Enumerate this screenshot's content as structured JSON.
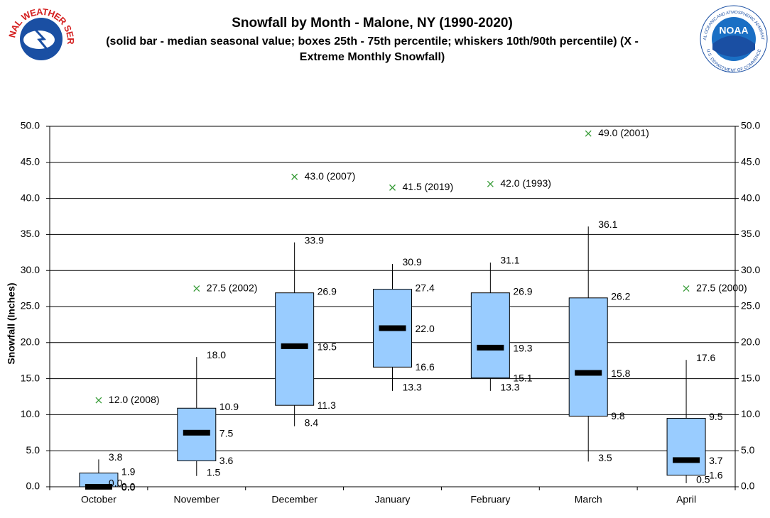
{
  "chart_data": {
    "type": "box",
    "title": "Snowfall by Month - Malone, NY (1990-2020)",
    "subtitle": "(solid bar - median seasonal value; boxes 25th - 75th percentile; whiskers 10th/90th percentile) (X - Extreme Monthly Snowfall)",
    "y_label": "Snowfall (Inches)",
    "categories": [
      "October",
      "November",
      "December",
      "January",
      "February",
      "March",
      "April"
    ],
    "whisker_high": {
      "values": [
        3.8,
        18.0,
        33.9,
        30.9,
        31.1,
        36.1,
        17.6
      ],
      "value_labels": [
        "3.8",
        "18.0",
        "33.9",
        "30.9",
        "31.1",
        "36.1",
        "17.6"
      ]
    },
    "box_high": {
      "values": [
        1.9,
        10.9,
        26.9,
        27.4,
        26.9,
        26.2,
        9.5
      ],
      "value_labels": [
        "1.9",
        "10.9",
        "26.9",
        "27.4",
        "26.9",
        "26.2",
        "9.5"
      ]
    },
    "median": {
      "values": [
        0.0,
        7.5,
        19.5,
        22.0,
        19.3,
        15.8,
        3.7
      ],
      "value_labels": [
        "0.0",
        "7.5",
        "19.5",
        "22.0",
        "19.3",
        "15.8",
        "3.7"
      ]
    },
    "box_low": {
      "values": [
        0.0,
        3.6,
        11.3,
        16.6,
        15.1,
        9.8,
        1.6
      ],
      "value_labels": [
        "0.0",
        "3.6",
        "11.3",
        "16.6",
        "15.1",
        "9.8",
        "1.6"
      ]
    },
    "whisker_low": {
      "values": [
        0.0,
        1.5,
        8.4,
        13.3,
        13.3,
        3.5,
        0.5
      ],
      "value_labels": [
        "0.0",
        "1.5",
        "8.4",
        "13.3",
        "13.3",
        "3.5",
        "0.5"
      ]
    },
    "extreme": {
      "values": [
        12.0,
        27.5,
        43.0,
        41.5,
        42.0,
        49.0,
        27.5
      ],
      "value_labels": [
        "12.0 (2008)",
        "27.5 (2002)",
        "43.0 (2007)",
        "41.5 (2019)",
        "42.0 (1993)",
        "49.0 (2001)",
        "27.5 (2000)"
      ]
    },
    "box_color": "#99ccff",
    "median_color": "#000000",
    "extreme_color": "#339933",
    "ylim": [
      0,
      50
    ],
    "yticks": [
      {
        "value": 0,
        "label": "0.0"
      },
      {
        "value": 5,
        "label": "5.0"
      },
      {
        "value": 10,
        "label": "10.0"
      },
      {
        "value": 15,
        "label": "15.0"
      },
      {
        "value": 20,
        "label": "20.0"
      },
      {
        "value": 25,
        "label": "25.0"
      },
      {
        "value": 30,
        "label": "30.0"
      },
      {
        "value": 35,
        "label": "35.0"
      },
      {
        "value": 40,
        "label": "40.0"
      },
      {
        "value": 45,
        "label": "45.0"
      },
      {
        "value": 50,
        "label": "50.0"
      }
    ],
    "grid": true
  },
  "logos": {
    "nws": "NATIONAL WEATHER SERVICE",
    "noaa": "NOAA",
    "noaa_ring": "NATIONAL OCEANIC AND ATMOSPHERIC ADMINISTRATION",
    "noaa_dept": "U.S. DEPARTMENT OF COMMERCE"
  }
}
